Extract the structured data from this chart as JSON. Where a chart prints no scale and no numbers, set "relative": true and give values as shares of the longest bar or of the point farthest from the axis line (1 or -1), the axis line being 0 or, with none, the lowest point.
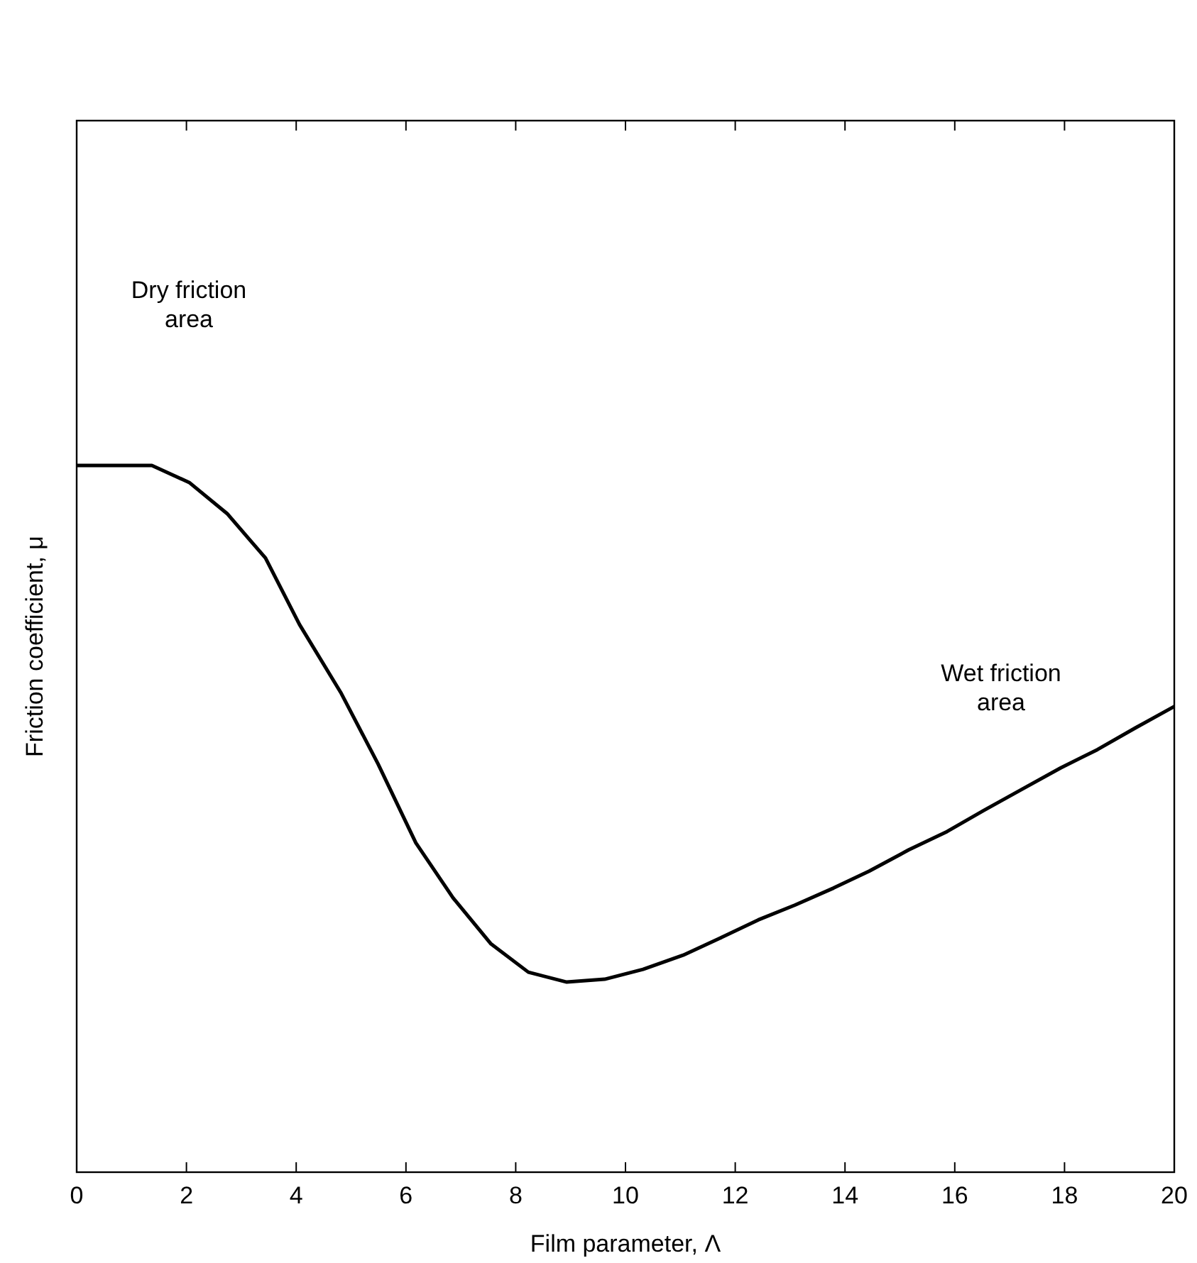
{
  "chart_data": {
    "type": "line",
    "relative": true,
    "xlabel": "Film parameter, Λ",
    "ylabel": "Friction coefficient, μ",
    "xlim": [
      0,
      20
    ],
    "xticks": [
      0,
      2,
      4,
      6,
      8,
      10,
      12,
      14,
      16,
      18,
      20
    ],
    "series": [
      {
        "color": "#000000",
        "x": [
          0,
          1.37,
          2.05,
          2.74,
          3.44,
          4.06,
          4.81,
          5.49,
          6.18,
          6.86,
          7.55,
          8.23,
          8.93,
          9.62,
          10.32,
          11.05,
          11.72,
          12.42,
          13.09,
          13.79,
          14.44,
          15.16,
          15.86,
          16.53,
          17.23,
          17.93,
          18.6,
          19.3,
          20
        ],
        "values": [
          1,
          1,
          0.976,
          0.932,
          0.869,
          0.775,
          0.679,
          0.578,
          0.466,
          0.388,
          0.323,
          0.283,
          0.269,
          0.273,
          0.287,
          0.307,
          0.331,
          0.357,
          0.378,
          0.402,
          0.426,
          0.456,
          0.482,
          0.512,
          0.542,
          0.572,
          0.598,
          0.629,
          0.659
        ]
      }
    ],
    "annotations": [
      "Dry friction\narea",
      "Wet friction\narea"
    ],
    "grid": false,
    "marker": "none",
    "line_style": "solid"
  }
}
